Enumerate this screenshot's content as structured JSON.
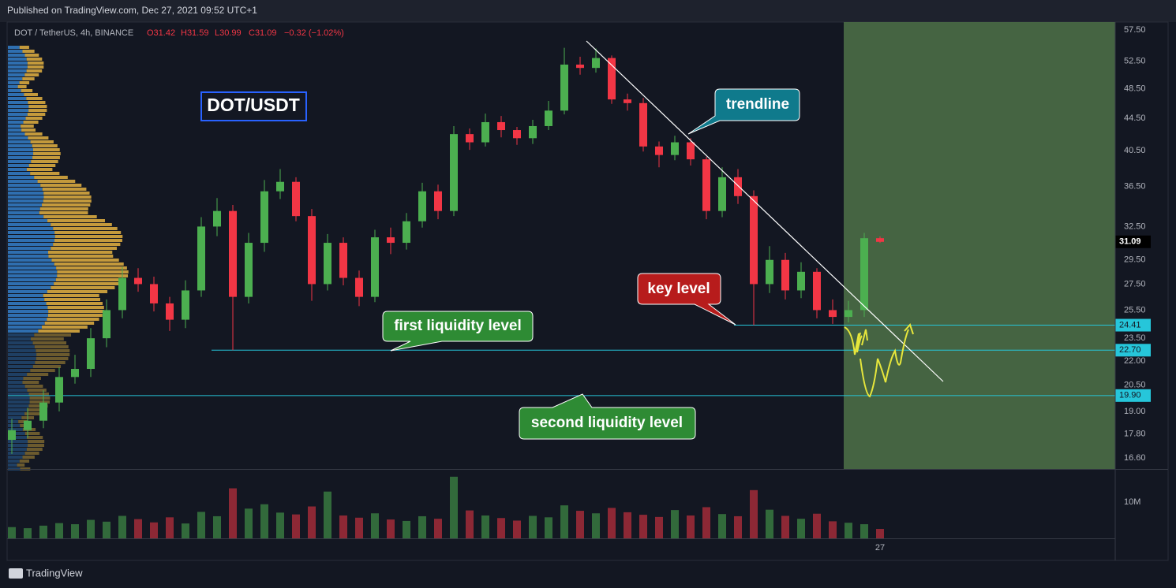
{
  "header": {
    "published": "Published on TradingView.com, Dec 27, 2021 09:52 UTC+1",
    "brand": "TradingView"
  },
  "chart_data": {
    "type": "candlestick",
    "title": "DOT/USDT",
    "legend": {
      "symbol": "DOT / TetherUS, 4h, BINANCE",
      "open": "O31.42",
      "high": "H31.59",
      "low": "L30.99",
      "close": "C31.09",
      "change": "−0.32 (−1.02%)"
    },
    "categories": [
      null,
      null,
      null,
      null,
      null,
      null,
      null,
      null,
      null,
      null,
      null,
      null,
      null,
      null,
      null,
      null,
      null,
      null,
      null,
      null,
      null,
      null,
      null,
      null,
      null,
      null,
      null,
      null,
      null,
      null,
      null,
      null,
      null,
      null,
      null,
      null,
      null,
      null,
      null,
      null,
      null,
      null,
      null,
      null,
      null,
      null,
      null,
      null,
      null,
      null,
      null,
      null,
      null,
      null,
      null,
      "27"
    ],
    "open": [
      17.5,
      18.0,
      18.5,
      19.5,
      21.0,
      21.5,
      23.5,
      25.5,
      28.0,
      27.5,
      26.0,
      24.8,
      27.0,
      32.5,
      34.0,
      26.5,
      31.0,
      36.0,
      37.0,
      33.5,
      27.5,
      31.0,
      28.0,
      26.5,
      31.5,
      31.0,
      33.0,
      36.0,
      34.0,
      42.5,
      41.5,
      44.0,
      43.0,
      42.0,
      43.5,
      45.5,
      52.0,
      51.5,
      53.0,
      47.0,
      46.5,
      41.0,
      40.0,
      41.5,
      39.5,
      34.0,
      37.5,
      35.5,
      27.5,
      29.5,
      27.0,
      28.5,
      25.5,
      25.0,
      25.5,
      31.42
    ],
    "high": [
      18.6,
      19.2,
      20.2,
      21.6,
      22.4,
      24.2,
      26.3,
      28.9,
      28.8,
      28.1,
      26.5,
      27.8,
      33.4,
      35.3,
      34.6,
      31.9,
      37.2,
      38.4,
      37.5,
      34.2,
      31.8,
      31.5,
      28.6,
      32.2,
      32.4,
      33.8,
      36.9,
      36.7,
      43.5,
      43.2,
      45.1,
      44.8,
      43.4,
      44.3,
      46.8,
      54.6,
      53.2,
      54.5,
      53.4,
      47.8,
      47.2,
      41.6,
      42.3,
      42.0,
      39.8,
      38.6,
      38.4,
      36.1,
      30.7,
      30.1,
      29.3,
      28.8,
      26.3,
      26.2,
      31.9,
      31.59
    ],
    "low": [
      16.8,
      17.6,
      18.1,
      19.0,
      20.6,
      21.0,
      22.9,
      24.9,
      26.9,
      25.4,
      24.0,
      24.2,
      26.5,
      31.6,
      22.7,
      26.0,
      30.2,
      35.2,
      33.0,
      26.2,
      27.0,
      27.4,
      25.8,
      26.1,
      30.0,
      30.4,
      32.4,
      33.2,
      33.5,
      40.6,
      41.0,
      42.1,
      41.2,
      41.3,
      43.0,
      45.0,
      50.5,
      50.8,
      46.4,
      45.5,
      40.4,
      38.6,
      39.4,
      38.8,
      33.2,
      33.4,
      34.7,
      24.41,
      26.8,
      26.3,
      26.4,
      24.9,
      24.5,
      24.6,
      25.0,
      30.99
    ],
    "close": [
      18.0,
      18.5,
      19.5,
      21.0,
      21.5,
      23.5,
      25.5,
      28.0,
      27.5,
      26.0,
      24.8,
      27.0,
      32.5,
      34.0,
      26.5,
      31.0,
      36.0,
      37.0,
      33.5,
      27.5,
      31.0,
      28.0,
      26.5,
      31.5,
      31.0,
      33.0,
      36.0,
      34.0,
      42.5,
      41.5,
      44.0,
      43.0,
      42.0,
      43.5,
      45.5,
      52.0,
      51.5,
      53.0,
      47.0,
      46.5,
      41.0,
      40.0,
      41.5,
      39.5,
      34.0,
      37.5,
      35.5,
      27.5,
      29.5,
      27.0,
      28.5,
      25.5,
      25.0,
      25.5,
      31.42,
      31.09
    ],
    "volume": [
      3100000,
      2800000,
      3500000,
      4200000,
      3900000,
      5100000,
      4600000,
      6200000,
      5300000,
      4400000,
      5800000,
      4100000,
      7300000,
      6100000,
      13800000,
      8200000,
      9400000,
      7100000,
      6600000,
      8800000,
      12900000,
      6300000,
      5700000,
      6900000,
      5200000,
      4800000,
      6100000,
      5400000,
      17000000,
      7700000,
      6300000,
      5600000,
      4900000,
      6200000,
      5800000,
      9100000,
      7600000,
      6900000,
      8400000,
      7200000,
      6500000,
      5900000,
      7800000,
      6300000,
      8600000,
      6700000,
      6100000,
      13300000,
      7900000,
      6200000,
      5400000,
      6800000,
      4700000,
      4300000,
      3900000,
      2600000
    ],
    "up_color": "#4caf50",
    "down_color": "#f23645",
    "log": true,
    "ylim": [
      16.08,
      58.83
    ],
    "yticks": [
      {
        "value": 57.5,
        "label": "57.50"
      },
      {
        "value": 52.5,
        "label": "52.50"
      },
      {
        "value": 48.5,
        "label": "48.50"
      },
      {
        "value": 44.5,
        "label": "44.50"
      },
      {
        "value": 40.5,
        "label": "40.50"
      },
      {
        "value": 36.5,
        "label": "36.50"
      },
      {
        "value": 32.5,
        "label": "32.50"
      },
      {
        "value": 29.5,
        "label": "29.50"
      },
      {
        "value": 27.5,
        "label": "27.50"
      },
      {
        "value": 25.5,
        "label": "25.50"
      },
      {
        "value": 23.5,
        "label": "23.50"
      },
      {
        "value": 22.0,
        "label": "22.00"
      },
      {
        "value": 20.5,
        "label": "20.50"
      },
      {
        "value": 19.0,
        "label": "19.00"
      },
      {
        "value": 17.8,
        "label": "17.80"
      },
      {
        "value": 16.6,
        "label": "16.60"
      }
    ],
    "volume_ylim": [
      0,
      18700000
    ],
    "volume_yticks": [
      {
        "value": 10000000,
        "label": "10M"
      }
    ],
    "levels": [
      24.41,
      {
        "value": 22.7,
        "label": "22.70"
      },
      {
        "value": 19.9,
        "label": "19.90"
      }
    ],
    "annotations": [
      "trendline",
      "key level",
      "first liquidity level",
      "second liquidity level"
    ]
  }
}
